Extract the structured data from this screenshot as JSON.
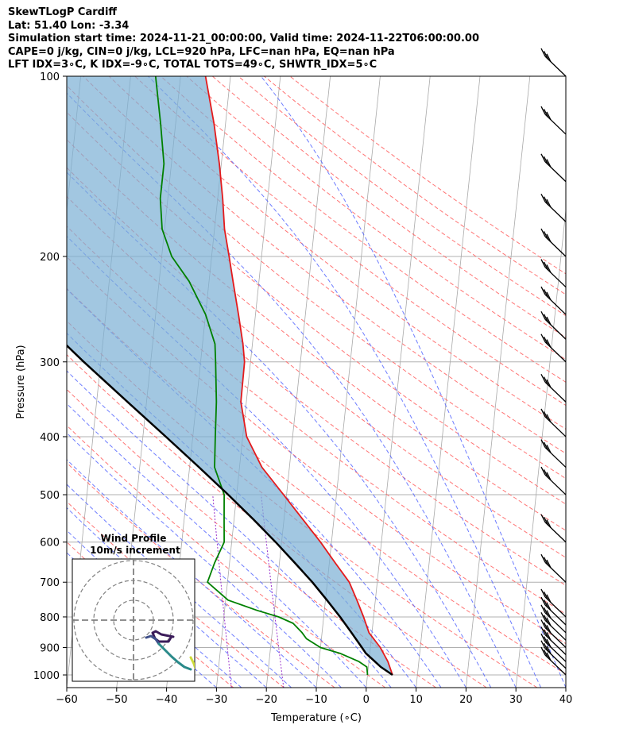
{
  "header": {
    "lines": [
      "SkewTLogP Cardiff",
      "Lat: 51.40   Lon: -3.34",
      "Simulation start time: 2024-11-21_00:00:00, Valid time: 2024-11-22T06:00:00.00",
      "CAPE=0 j/kg, CIN=0 j/kg, LCL=920 hPa, LFC=nan hPa, EQ=nan hPa",
      "LFT IDX=3∘C, K IDX=-9∘C, TOTAL TOTS=49∘C, SHWTR_IDX=5∘C"
    ]
  },
  "chart_data": {
    "type": "line",
    "title": "SkewTLogP Cardiff",
    "xlabel": "Temperature (∘C)",
    "ylabel": "Pressure (hPa)",
    "xlim": [
      -60,
      40
    ],
    "ylim": [
      1050,
      100
    ],
    "y_scale": "log",
    "x_ticks": [
      -60,
      -50,
      -40,
      -30,
      -20,
      -10,
      0,
      10,
      20,
      30,
      40
    ],
    "x_tick_labels": [
      "−60",
      "−50",
      "−40",
      "−30",
      "−20",
      "−10",
      "0",
      "10",
      "20",
      "30",
      "40"
    ],
    "y_ticks": [
      1000,
      900,
      800,
      700,
      600,
      500,
      400,
      300,
      200,
      100
    ],
    "grid": true,
    "colors": {
      "temperature": "#e41a1c",
      "dewpoint": "#008000",
      "parcel": "#000000",
      "cin_shading": "#7bafd4",
      "isotherm": "#a9a9a9",
      "dry_adiabat": "#ff6666",
      "moist_adiabat": "#5566ff",
      "mixing_ratio": "#9933cc"
    },
    "series": [
      {
        "key": "temperature",
        "pressure": [
          1000,
          950,
          900,
          850,
          800,
          750,
          700,
          650,
          600,
          550,
          500,
          450,
          400,
          350,
          300,
          280,
          250,
          220,
          200,
          180,
          160,
          140,
          120,
          100
        ],
        "temp": [
          5.0,
          3.8,
          2.0,
          -0.6,
          -2.0,
          -3.7,
          -5.6,
          -8.8,
          -12.2,
          -16.2,
          -20.6,
          -25.5,
          -29.2,
          -31.1,
          -31.2,
          -31.9,
          -33.4,
          -35.2,
          -36.5,
          -38.0,
          -39.0,
          -40.4,
          -42.3,
          -45.0
        ]
      },
      {
        "key": "dewpoint",
        "pressure": [
          1000,
          970,
          950,
          920,
          900,
          870,
          850,
          820,
          800,
          780,
          750,
          700,
          650,
          600,
          550,
          500,
          450,
          400,
          350,
          300,
          280,
          250,
          220,
          200,
          180,
          160,
          140,
          120,
          100
        ],
        "temp": [
          0.0,
          -0.3,
          -2.0,
          -6.0,
          -10.0,
          -13.0,
          -14.0,
          -16.0,
          -19.0,
          -23.5,
          -29.5,
          -34.0,
          -33.0,
          -31.5,
          -32.0,
          -32.5,
          -35.0,
          -35.5,
          -36.0,
          -37.0,
          -37.5,
          -40.0,
          -44.0,
          -48.0,
          -50.5,
          -51.5,
          -51.5,
          -53.0,
          -55.0
        ]
      },
      {
        "key": "parcel",
        "pressure": [
          1000,
          970,
          950,
          920,
          900,
          850,
          800,
          750,
          700,
          650,
          600,
          550,
          500,
          450,
          400,
          350,
          300,
          250,
          200,
          150,
          100
        ],
        "temp": [
          5.0,
          2.5,
          1.2,
          -0.8,
          -1.7,
          -4.1,
          -6.7,
          -9.7,
          -13.0,
          -16.9,
          -21.2,
          -26.1,
          -31.7,
          -38.1,
          -45.4,
          -53.8,
          -63.4,
          -74.3,
          -86.7,
          -101.0,
          -118.0
        ]
      }
    ],
    "wind_barbs": {
      "pressure": [
        1000,
        975,
        950,
        925,
        900,
        875,
        850,
        825,
        800,
        700,
        600,
        500,
        450,
        400,
        350,
        300,
        275,
        250,
        225,
        200,
        175,
        150,
        125,
        100
      ],
      "barb_count": 24
    },
    "inset": {
      "title_lines": [
        "Wind Profile",
        "10m/s increment"
      ],
      "rings_ms": [
        10,
        20,
        30
      ]
    }
  }
}
